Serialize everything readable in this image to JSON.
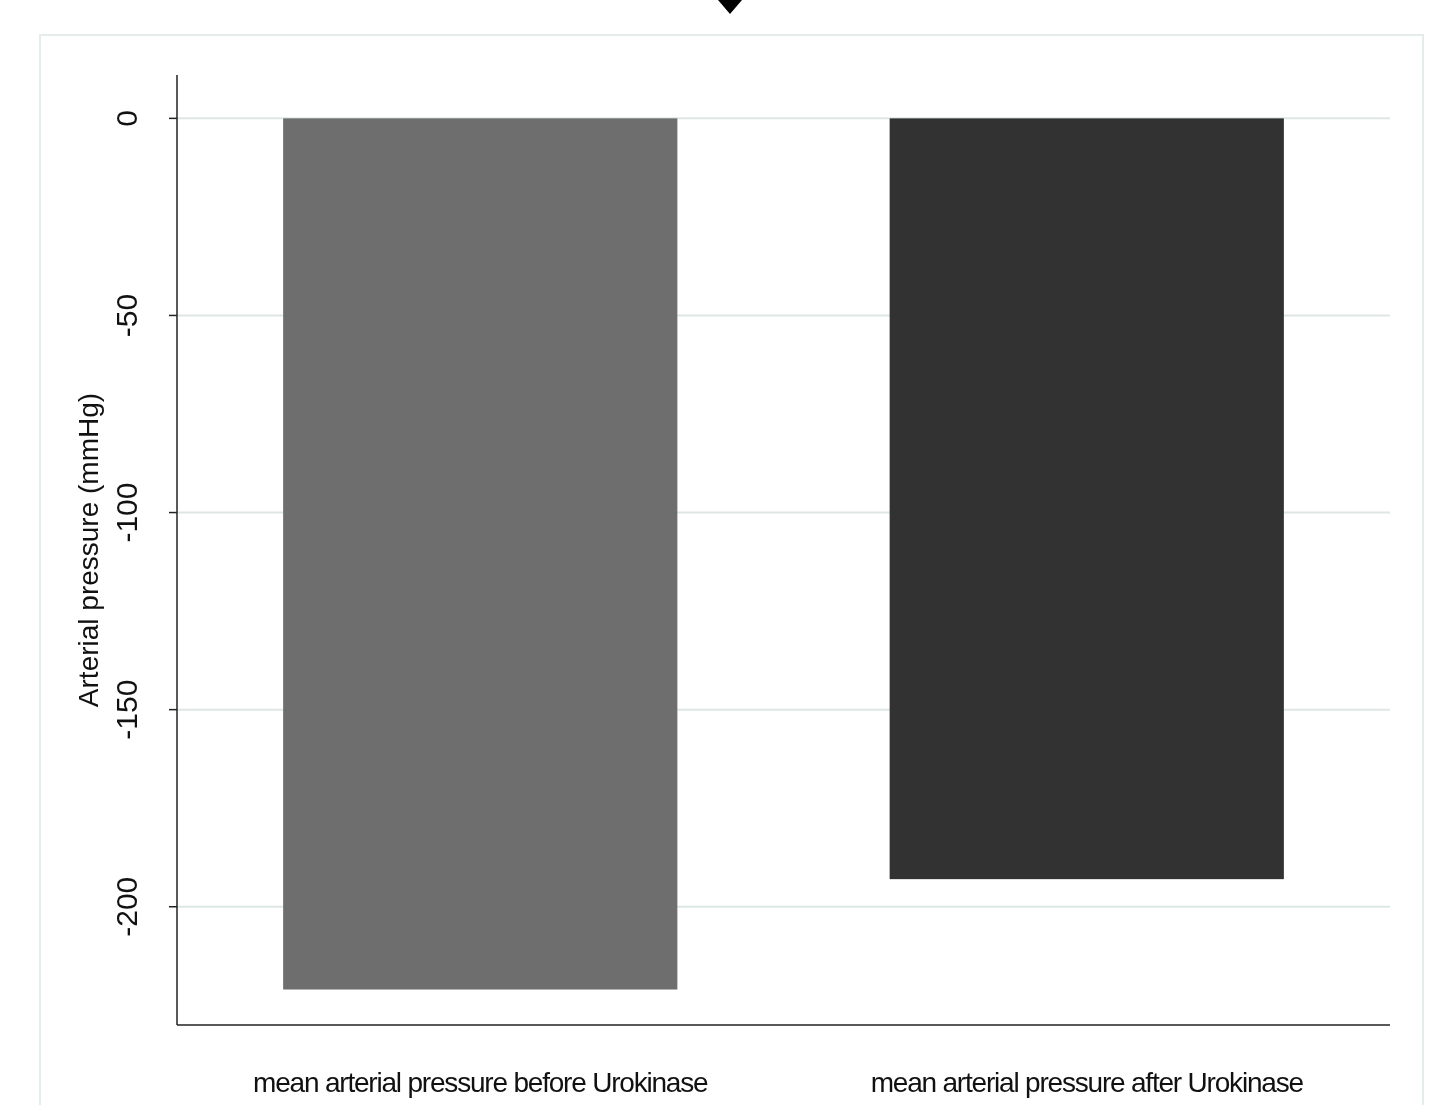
{
  "chart_data": {
    "type": "bar",
    "ylabel": "Arterial pressure (mmHg)",
    "categories": [
      "mean arterial pressure before Urokinase",
      "mean arterial pressure after Urokinase"
    ],
    "values": [
      -221,
      -193
    ],
    "colors": [
      "#6e6e6e",
      "#323232"
    ],
    "ylim": [
      -230,
      11
    ],
    "yticks": [
      0,
      -50,
      -100,
      -150,
      -200
    ],
    "grid": "y"
  }
}
